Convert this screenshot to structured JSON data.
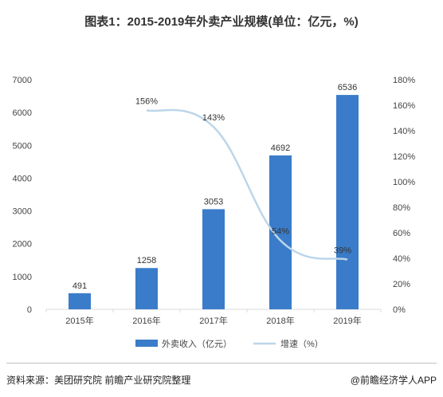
{
  "title": "图表1：2015-2019年外卖产业规模(单位：亿元，%)",
  "source": "资料来源：美团研究院 前瞻产业研究院整理",
  "brand": "@前瞻经济学人APP",
  "colors": {
    "bar": "#3a7cc9",
    "line": "#bcd6ea",
    "axis": "#d9d9d9"
  },
  "chart_data": {
    "type": "bar",
    "categories": [
      "2015年",
      "2016年",
      "2017年",
      "2018年",
      "2019年"
    ],
    "series": [
      {
        "name": "外卖收入（亿元）",
        "type": "bar",
        "axis": "left",
        "values": [
          491,
          1258,
          3053,
          4692,
          6536
        ],
        "labels": [
          "491",
          "1258",
          "3053",
          "4692",
          "6536"
        ]
      },
      {
        "name": "增速（%）",
        "type": "line",
        "axis": "right",
        "values": [
          null,
          156,
          143,
          54,
          39
        ],
        "labels": [
          "",
          "156%",
          "143%",
          "54%",
          "39%"
        ]
      }
    ],
    "y_left": {
      "min": 0,
      "max": 7000,
      "ticks": [
        "0",
        "1000",
        "2000",
        "3000",
        "4000",
        "5000",
        "6000",
        "7000"
      ]
    },
    "y_right": {
      "min": 0,
      "max": 180,
      "ticks": [
        "0%",
        "20%",
        "40%",
        "60%",
        "80%",
        "100%",
        "120%",
        "140%",
        "160%",
        "180%"
      ]
    },
    "grid": false,
    "legend": "bottom"
  }
}
